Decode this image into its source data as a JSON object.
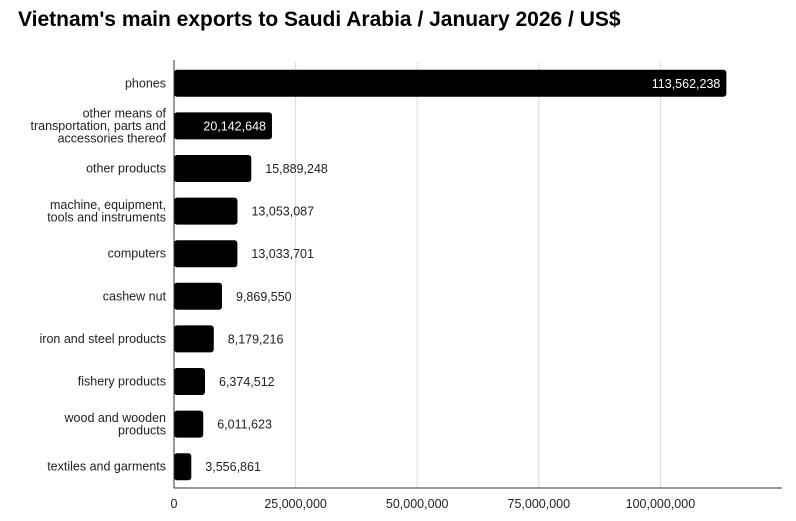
{
  "chart_data": {
    "type": "bar",
    "orientation": "horizontal",
    "title": "Vietnam's main exports to Saudi Arabia / January 2026 / US$",
    "xlabel": "",
    "ylabel": "",
    "categories": [
      [
        "phones"
      ],
      [
        "other means of",
        "transportation, parts and",
        "accessories thereof"
      ],
      [
        "other products"
      ],
      [
        "machine, equipment,",
        "tools and instruments"
      ],
      [
        "computers"
      ],
      [
        "cashew nut"
      ],
      [
        "iron and steel products"
      ],
      [
        "fishery products"
      ],
      [
        "wood and wooden",
        "products"
      ],
      [
        "textiles and garments"
      ]
    ],
    "values": [
      113562238,
      20142648,
      15889248,
      13053087,
      13033701,
      9869550,
      8179216,
      6374512,
      6011623,
      3556861
    ],
    "value_labels": [
      "113,562,238",
      "20,142,648",
      "15,889,248",
      "13,053,087",
      "13,033,701",
      "9,869,550",
      "8,179,216",
      "6,374,512",
      "6,011,623",
      "3,556,861"
    ],
    "xlim": [
      0,
      125000000
    ],
    "xticks": [
      0,
      25000000,
      50000000,
      75000000,
      100000000
    ],
    "xtick_labels": [
      "0",
      "25,000,000",
      "50,000,000",
      "75,000,000",
      "100,000,000"
    ],
    "grid": "vertical",
    "legend": "none",
    "bar_color": "#000000",
    "grid_color": "#d9d9d9"
  }
}
